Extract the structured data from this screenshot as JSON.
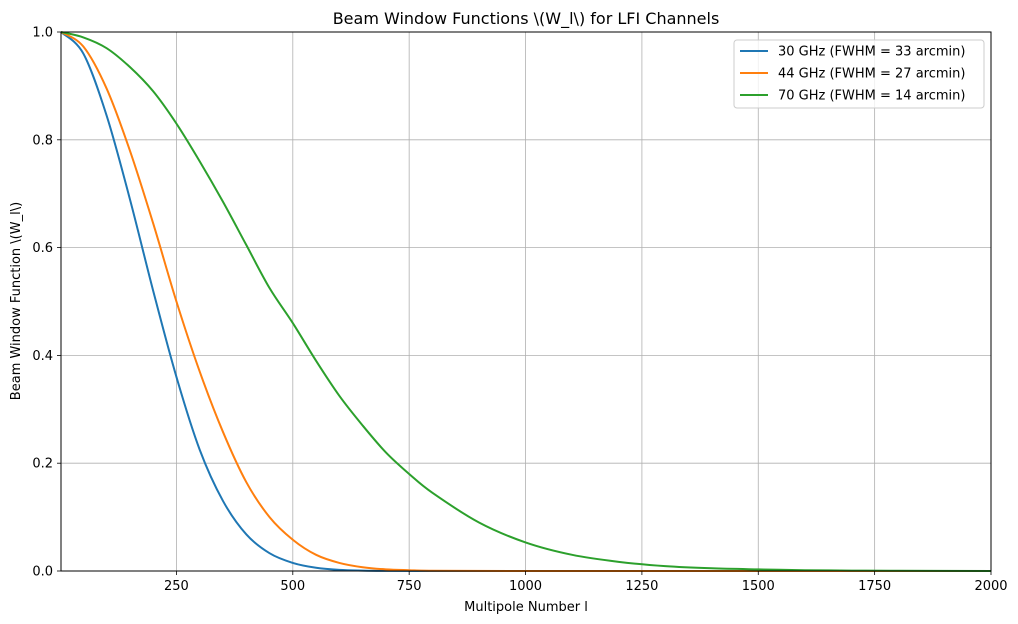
{
  "chart_data": {
    "type": "line",
    "title": "Beam Window Functions \\(W_l\\) for LFI Channels",
    "xlabel": "Multipole Number l",
    "ylabel": "Beam Window Function \\(W_l\\)",
    "xlim": [
      2,
      2000
    ],
    "ylim": [
      0,
      1.0
    ],
    "xticks": [
      250,
      500,
      750,
      1000,
      1250,
      1500,
      1750,
      2000
    ],
    "yticks": [
      0.0,
      0.2,
      0.4,
      0.6,
      0.8,
      1.0
    ],
    "grid": true,
    "legend_position": "top-right",
    "series": [
      {
        "name": "30 GHz (FWHM = 33 arcmin)",
        "color": "#1f77b4",
        "x": [
          2,
          50,
          100,
          150,
          200,
          250,
          300,
          350,
          400,
          450,
          500,
          550,
          600,
          650,
          700,
          800,
          1000,
          1500,
          2000
        ],
        "y": [
          1.0,
          0.96,
          0.845,
          0.69,
          0.52,
          0.36,
          0.225,
          0.13,
          0.068,
          0.033,
          0.015,
          0.006,
          0.002,
          0.0007,
          0.0002,
          0.0,
          0.0,
          0.0,
          0.0
        ]
      },
      {
        "name": "44 GHz (FWHM = 27 arcmin)",
        "color": "#ff7f0e",
        "x": [
          2,
          50,
          100,
          150,
          200,
          250,
          300,
          350,
          400,
          450,
          500,
          550,
          600,
          650,
          700,
          750,
          800,
          1000,
          1500,
          2000
        ],
        "y": [
          1.0,
          0.973,
          0.895,
          0.78,
          0.645,
          0.5,
          0.37,
          0.258,
          0.165,
          0.1,
          0.058,
          0.03,
          0.015,
          0.007,
          0.003,
          0.0015,
          0.0005,
          0.0,
          0.0,
          0.0
        ]
      },
      {
        "name": "70 GHz (FWHM = 14 arcmin)",
        "color": "#2ca02c",
        "x": [
          2,
          50,
          100,
          150,
          200,
          250,
          300,
          350,
          400,
          450,
          500,
          550,
          600,
          650,
          700,
          750,
          800,
          900,
          1000,
          1100,
          1200,
          1300,
          1400,
          1500,
          1600,
          1700,
          1800,
          2000
        ],
        "y": [
          1.0,
          0.99,
          0.97,
          0.935,
          0.89,
          0.83,
          0.76,
          0.685,
          0.605,
          0.525,
          0.46,
          0.39,
          0.325,
          0.27,
          0.22,
          0.18,
          0.145,
          0.09,
          0.053,
          0.03,
          0.017,
          0.009,
          0.005,
          0.003,
          0.0015,
          0.0008,
          0.0004,
          0.0001
        ]
      }
    ]
  }
}
